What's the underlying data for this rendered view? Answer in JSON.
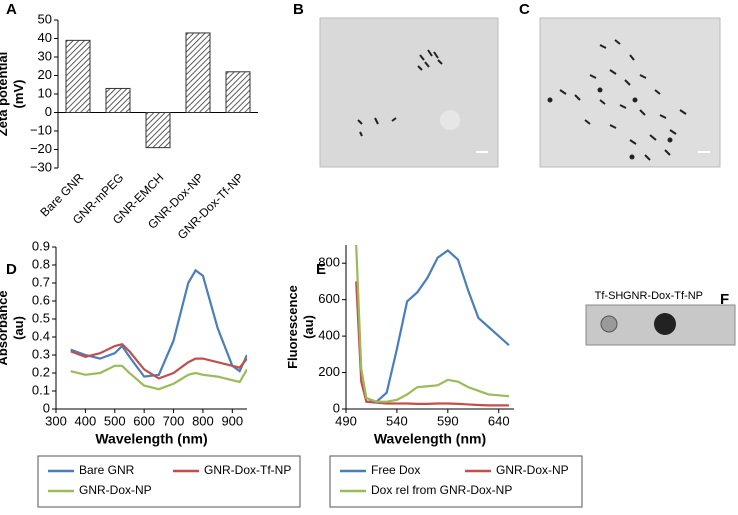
{
  "chart_data": [
    {
      "panel": "A",
      "type": "bar",
      "ylabel": [
        "Zeta potential",
        "(mV)"
      ],
      "categories": [
        "Bare GNR",
        "GNR-mPEG",
        "GNR-EMCH",
        "GNR-Dox-NP",
        "GNR-Dox-Tf-NP"
      ],
      "values": [
        39,
        13,
        -19,
        43,
        22
      ],
      "color": "#333333",
      "ylim": [
        -30,
        50
      ],
      "yticks": [
        {
          "value": -30,
          "label": "−30"
        },
        {
          "value": -20,
          "label": "−20"
        },
        {
          "value": -10,
          "label": "−10"
        },
        0,
        10,
        20,
        30,
        40,
        50
      ]
    },
    {
      "panel": "D",
      "type": "line",
      "xlabel": "Wavelength (nm)",
      "ylabel": [
        "Absorbance",
        "(au)"
      ],
      "x": [
        350,
        400,
        450,
        500,
        525,
        550,
        600,
        650,
        700,
        750,
        775,
        800,
        850,
        900,
        925,
        950
      ],
      "xlim": [
        300,
        950
      ],
      "xticks": [
        300,
        400,
        500,
        600,
        700,
        800,
        900
      ],
      "ylim": [
        0,
        0.9
      ],
      "yticks": [
        0,
        0.1,
        0.2,
        0.3,
        0.4,
        0.5,
        0.6,
        0.7,
        0.8,
        0.9
      ],
      "series": [
        {
          "name": "Bare GNR",
          "color": "#4a7ebb",
          "values": [
            0.33,
            0.3,
            0.28,
            0.31,
            0.35,
            0.29,
            0.18,
            0.19,
            0.38,
            0.7,
            0.77,
            0.74,
            0.45,
            0.24,
            0.21,
            0.3
          ]
        },
        {
          "name": "GNR-Dox-Tf-NP",
          "color": "#c0504d",
          "values": [
            0.32,
            0.29,
            0.31,
            0.35,
            0.36,
            0.32,
            0.22,
            0.17,
            0.2,
            0.26,
            0.28,
            0.28,
            0.26,
            0.24,
            0.23,
            0.28
          ]
        },
        {
          "name": "GNR-Dox-NP",
          "color": "#9bbb59",
          "values": [
            0.21,
            0.19,
            0.2,
            0.24,
            0.24,
            0.2,
            0.13,
            0.11,
            0.14,
            0.19,
            0.2,
            0.19,
            0.18,
            0.16,
            0.15,
            0.22
          ]
        }
      ]
    },
    {
      "panel": "E",
      "type": "line",
      "xlabel": "Wavelength (nm)",
      "ylabel": [
        "Fluorescence",
        "(au)"
      ],
      "x": [
        500,
        505,
        510,
        520,
        530,
        540,
        550,
        560,
        570,
        580,
        590,
        600,
        610,
        620,
        630,
        640,
        650
      ],
      "xlim": [
        490,
        655
      ],
      "xticks": [
        490,
        540,
        590,
        640
      ],
      "ylim": [
        0,
        900
      ],
      "yticks": [
        0,
        200,
        400,
        600,
        800
      ],
      "series": [
        {
          "name": "Free Dox",
          "color": "#4a7ebb",
          "values": [
            null,
            null,
            40,
            40,
            90,
            330,
            590,
            640,
            720,
            830,
            870,
            820,
            650,
            500,
            450,
            400,
            350
          ]
        },
        {
          "name": "GNR-Dox-NP",
          "color": "#c0504d",
          "values": [
            700,
            150,
            40,
            35,
            30,
            30,
            30,
            28,
            28,
            30,
            30,
            28,
            25,
            22,
            20,
            20,
            20
          ]
        },
        {
          "name": "Dox rel from GNR-Dox-NP",
          "color": "#9bbb59",
          "values": [
            900,
            220,
            60,
            40,
            40,
            50,
            80,
            120,
            125,
            130,
            160,
            150,
            120,
            100,
            80,
            75,
            70
          ]
        }
      ]
    }
  ],
  "images": [
    {
      "panel": "B"
    },
    {
      "panel": "C"
    },
    {
      "panel": "F",
      "labels": [
        "Tf-SH",
        "GNR-Dox-Tf-NP"
      ]
    }
  ]
}
